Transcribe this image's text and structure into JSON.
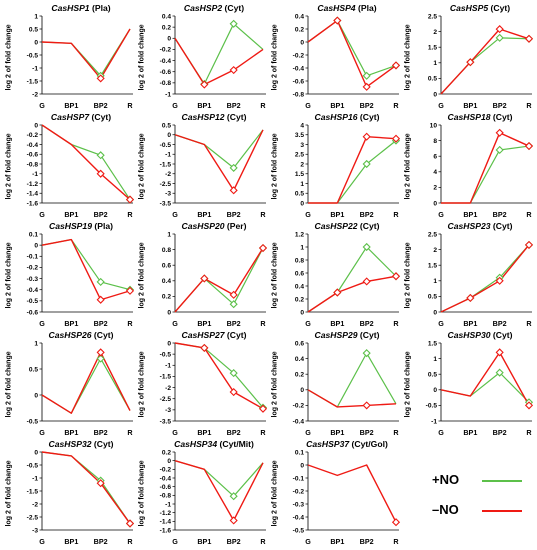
{
  "colors": {
    "no_plus": "#5cc04a",
    "no_minus": "#ef1a14",
    "axis": "#000000"
  },
  "legend": {
    "plus_label": "+NO",
    "minus_label": "–NO"
  },
  "ylabel_text": "log 2 of fold change",
  "categories": [
    "G",
    "BP1",
    "BP2",
    "R"
  ],
  "chart_data": [
    {
      "type": "line",
      "title_gene": "CasHSP1",
      "title_loc": "(Pla)",
      "ylabel": "log 2 of fold change",
      "categories": [
        "G",
        "BP1",
        "BP2",
        "R"
      ],
      "ylim": [
        -2,
        1
      ],
      "yticks": [
        -2,
        -1.5,
        -1,
        -0.5,
        0,
        0.5,
        1
      ],
      "markers": [
        2
      ],
      "series": [
        {
          "name": "+NO",
          "values": [
            0,
            -0.05,
            -1.3,
            0.5
          ]
        },
        {
          "name": "–NO",
          "values": [
            0,
            -0.05,
            -1.4,
            0.5
          ]
        }
      ]
    },
    {
      "type": "line",
      "title_gene": "CasHSP2",
      "title_loc": "(Cyt)",
      "ylabel": "log 2 of fold change",
      "categories": [
        "G",
        "BP1",
        "BP2",
        "R"
      ],
      "ylim": [
        -1,
        0.4
      ],
      "yticks": [
        -1,
        -0.8,
        -0.6,
        -0.4,
        -0.2,
        0,
        0.2,
        0.4
      ],
      "markers": [
        1,
        2
      ],
      "series": [
        {
          "name": "+NO",
          "values": [
            0,
            -0.82,
            0.26,
            -0.2
          ]
        },
        {
          "name": "–NO",
          "values": [
            0,
            -0.83,
            -0.57,
            -0.2
          ]
        }
      ]
    },
    {
      "type": "line",
      "title_gene": "CasHSP4",
      "title_loc": "(Pla)",
      "ylabel": "log 2 of fold change",
      "categories": [
        "G",
        "BP1",
        "BP2",
        "R"
      ],
      "ylim": [
        -0.8,
        0.4
      ],
      "yticks": [
        -0.8,
        -0.6,
        -0.4,
        -0.2,
        0,
        0.2,
        0.4
      ],
      "markers": [
        1,
        2,
        3
      ],
      "series": [
        {
          "name": "+NO",
          "values": [
            0,
            0.33,
            -0.52,
            -0.36
          ]
        },
        {
          "name": "–NO",
          "values": [
            0,
            0.33,
            -0.69,
            -0.36
          ]
        }
      ]
    },
    {
      "type": "line",
      "title_gene": "CasHSP5",
      "title_loc": "(Cyt)",
      "ylabel": "log 2 of fold change",
      "categories": [
        "G",
        "BP1",
        "BP2",
        "R"
      ],
      "ylim": [
        0,
        2.5
      ],
      "yticks": [
        0,
        0.5,
        1,
        1.5,
        2,
        2.5
      ],
      "markers": [
        1,
        2,
        3
      ],
      "series": [
        {
          "name": "+NO",
          "values": [
            0,
            1.02,
            1.8,
            1.77
          ]
        },
        {
          "name": "–NO",
          "values": [
            0,
            1.02,
            2.08,
            1.77
          ]
        }
      ]
    },
    {
      "type": "line",
      "title_gene": "CasHSP7",
      "title_loc": "(Cyt)",
      "ylabel": "log 2 of fold change",
      "categories": [
        "G",
        "BP1",
        "BP2",
        "R"
      ],
      "ylim": [
        -1.6,
        0
      ],
      "yticks": [
        -1.6,
        -1.4,
        -1.2,
        -1,
        -0.8,
        -0.6,
        -0.4,
        -0.2,
        0
      ],
      "markers": [
        2,
        3
      ],
      "series": [
        {
          "name": "+NO",
          "values": [
            0,
            -0.4,
            -0.62,
            -1.53
          ]
        },
        {
          "name": "–NO",
          "values": [
            0,
            -0.4,
            -1.0,
            -1.53
          ]
        }
      ]
    },
    {
      "type": "line",
      "title_gene": "CasHSP12",
      "title_loc": "(Cyt)",
      "ylabel": "log 2 of fold change",
      "categories": [
        "G",
        "BP1",
        "BP2",
        "R"
      ],
      "ylim": [
        -3.5,
        0.5
      ],
      "yticks": [
        -3.5,
        -3,
        -2.5,
        -2,
        -1.5,
        -1,
        -0.5,
        0,
        0.5
      ],
      "markers": [
        2
      ],
      "series": [
        {
          "name": "+NO",
          "values": [
            0,
            -0.5,
            -1.7,
            0.25
          ]
        },
        {
          "name": "–NO",
          "values": [
            0,
            -0.5,
            -2.85,
            0.25
          ]
        }
      ]
    },
    {
      "type": "line",
      "title_gene": "CasHSP16",
      "title_loc": "(Cyt)",
      "ylabel": "log 2 of fold change",
      "categories": [
        "G",
        "BP1",
        "BP2",
        "R"
      ],
      "ylim": [
        0,
        4
      ],
      "yticks": [
        0,
        0.5,
        1,
        1.5,
        2,
        2.5,
        3,
        3.5,
        4
      ],
      "markers": [
        2,
        3
      ],
      "series": [
        {
          "name": "+NO",
          "values": [
            0,
            0,
            2.0,
            3.2
          ]
        },
        {
          "name": "–NO",
          "values": [
            0,
            0,
            3.4,
            3.3
          ]
        }
      ]
    },
    {
      "type": "line",
      "title_gene": "CasHSP18",
      "title_loc": "(Cyt)",
      "ylabel": "log 2 of fold change",
      "categories": [
        "G",
        "BP1",
        "BP2",
        "R"
      ],
      "ylim": [
        0,
        10
      ],
      "yticks": [
        0,
        2,
        4,
        6,
        8,
        10
      ],
      "markers": [
        2,
        3
      ],
      "series": [
        {
          "name": "+NO",
          "values": [
            0,
            0,
            6.8,
            7.3
          ]
        },
        {
          "name": "–NO",
          "values": [
            0,
            0,
            9.0,
            7.3
          ]
        }
      ]
    },
    {
      "type": "line",
      "title_gene": "CasHSP19",
      "title_loc": "(Pla)",
      "ylabel": "log 2 of fold change",
      "categories": [
        "G",
        "BP1",
        "BP2",
        "R"
      ],
      "ylim": [
        -0.6,
        0.1
      ],
      "yticks": [
        -0.6,
        -0.5,
        -0.4,
        -0.3,
        -0.2,
        -0.1,
        0,
        0.1
      ],
      "markers": [
        2,
        3
      ],
      "series": [
        {
          "name": "+NO",
          "values": [
            0,
            0.05,
            -0.33,
            -0.4
          ]
        },
        {
          "name": "–NO",
          "values": [
            0,
            0.05,
            -0.49,
            -0.41
          ]
        }
      ]
    },
    {
      "type": "line",
      "title_gene": "CasHSP20",
      "title_loc": "(Per)",
      "ylabel": "log 2 of fold change",
      "categories": [
        "G",
        "BP1",
        "BP2",
        "R"
      ],
      "ylim": [
        0,
        1
      ],
      "yticks": [
        0,
        0.2,
        0.4,
        0.6,
        0.8,
        1
      ],
      "markers": [
        1,
        2,
        3
      ],
      "series": [
        {
          "name": "+NO",
          "values": [
            0,
            0.43,
            0.1,
            0.82
          ]
        },
        {
          "name": "–NO",
          "values": [
            0,
            0.43,
            0.22,
            0.82
          ]
        }
      ]
    },
    {
      "type": "line",
      "title_gene": "CasHSP22",
      "title_loc": "(Cyt)",
      "ylabel": "log 2 of fold change",
      "categories": [
        "G",
        "BP1",
        "BP2",
        "R"
      ],
      "ylim": [
        0,
        1.2
      ],
      "yticks": [
        0,
        0.2,
        0.4,
        0.6,
        0.8,
        1,
        1.2
      ],
      "markers": [
        1,
        2,
        3
      ],
      "series": [
        {
          "name": "+NO",
          "values": [
            0,
            0.3,
            1.0,
            0.55
          ]
        },
        {
          "name": "–NO",
          "values": [
            0,
            0.3,
            0.47,
            0.55
          ]
        }
      ]
    },
    {
      "type": "line",
      "title_gene": "CasHSP23",
      "title_loc": "(Cyt)",
      "ylabel": "log 2 of fold change",
      "categories": [
        "G",
        "BP1",
        "BP2",
        "R"
      ],
      "ylim": [
        0,
        2.5
      ],
      "yticks": [
        0,
        0.5,
        1,
        1.5,
        2,
        2.5
      ],
      "markers": [
        1,
        2,
        3
      ],
      "series": [
        {
          "name": "+NO",
          "values": [
            0,
            0.45,
            1.1,
            2.15
          ]
        },
        {
          "name": "–NO",
          "values": [
            0,
            0.45,
            1.0,
            2.15
          ]
        }
      ]
    },
    {
      "type": "line",
      "title_gene": "CasHSP26",
      "title_loc": "(Cyt)",
      "ylabel": "log 2 of fold change",
      "categories": [
        "G",
        "BP1",
        "BP2",
        "R"
      ],
      "ylim": [
        -0.5,
        1
      ],
      "yticks": [
        -0.5,
        0,
        0.5,
        1
      ],
      "markers": [
        2
      ],
      "series": [
        {
          "name": "+NO",
          "values": [
            0,
            -0.35,
            0.7,
            -0.3
          ]
        },
        {
          "name": "–NO",
          "values": [
            0,
            -0.35,
            0.82,
            -0.3
          ]
        }
      ]
    },
    {
      "type": "line",
      "title_gene": "CasHSP27",
      "title_loc": "(Cyt)",
      "ylabel": "log 2 of fold change",
      "categories": [
        "G",
        "BP1",
        "BP2",
        "R"
      ],
      "ylim": [
        -3.5,
        0
      ],
      "yticks": [
        -3.5,
        -3,
        -2.5,
        -2,
        -1.5,
        -1,
        -0.5,
        0
      ],
      "markers": [
        1,
        2,
        3
      ],
      "series": [
        {
          "name": "+NO",
          "values": [
            0,
            -0.22,
            -1.35,
            -2.9
          ]
        },
        {
          "name": "–NO",
          "values": [
            0,
            -0.22,
            -2.2,
            -2.95
          ]
        }
      ]
    },
    {
      "type": "line",
      "title_gene": "CasHSP29",
      "title_loc": "(Cyt)",
      "ylabel": "log 2 of fold change",
      "categories": [
        "G",
        "BP1",
        "BP2",
        "R"
      ],
      "ylim": [
        -0.4,
        0.6
      ],
      "yticks": [
        -0.4,
        -0.2,
        0,
        0.2,
        0.4,
        0.6
      ],
      "markers": [
        2
      ],
      "series": [
        {
          "name": "+NO",
          "values": [
            0,
            -0.22,
            0.47,
            -0.18
          ]
        },
        {
          "name": "–NO",
          "values": [
            0,
            -0.22,
            -0.2,
            -0.18
          ]
        }
      ]
    },
    {
      "type": "line",
      "title_gene": "CasHSP30",
      "title_loc": "(Cyt)",
      "ylabel": "log 2 of fold change",
      "categories": [
        "G",
        "BP1",
        "BP2",
        "R"
      ],
      "ylim": [
        -1,
        1.5
      ],
      "yticks": [
        -1,
        -0.5,
        0,
        0.5,
        1,
        1.5
      ],
      "markers": [
        2,
        3
      ],
      "series": [
        {
          "name": "+NO",
          "values": [
            0,
            -0.2,
            0.55,
            -0.4
          ]
        },
        {
          "name": "–NO",
          "values": [
            0,
            -0.2,
            1.2,
            -0.5
          ]
        }
      ]
    },
    {
      "type": "line",
      "title_gene": "CasHSP32",
      "title_loc": "(Cyt)",
      "ylabel": "log 2 of fold change",
      "categories": [
        "G",
        "BP1",
        "BP2",
        "R"
      ],
      "ylim": [
        -3,
        0
      ],
      "yticks": [
        -3,
        -2.5,
        -2,
        -1.5,
        -1,
        -0.5,
        0
      ],
      "markers": [
        2,
        3
      ],
      "series": [
        {
          "name": "+NO",
          "values": [
            0,
            -0.15,
            -1.1,
            -2.75
          ]
        },
        {
          "name": "–NO",
          "values": [
            0,
            -0.15,
            -1.2,
            -2.75
          ]
        }
      ]
    },
    {
      "type": "line",
      "title_gene": "CasHSP34",
      "title_loc": "(Cyt/Mit)",
      "ylabel": "log 2 of fold change",
      "categories": [
        "G",
        "BP1",
        "BP2",
        "R"
      ],
      "ylim": [
        -1.6,
        0.2
      ],
      "yticks": [
        -1.6,
        -1.4,
        -1.2,
        -1,
        -0.8,
        -0.6,
        -0.4,
        -0.2,
        0,
        0.2
      ],
      "markers": [
        2
      ],
      "series": [
        {
          "name": "+NO",
          "values": [
            0,
            -0.2,
            -0.82,
            -0.05
          ]
        },
        {
          "name": "–NO",
          "values": [
            0,
            -0.2,
            -1.38,
            -0.05
          ]
        }
      ]
    },
    {
      "type": "line",
      "title_gene": "CasHSP37",
      "title_loc": "(Cyt/Gol)",
      "ylabel": "log 2 of fold change",
      "categories": [
        "G",
        "BP1",
        "BP2",
        "R"
      ],
      "ylim": [
        -0.5,
        0.1
      ],
      "yticks": [
        -0.5,
        -0.4,
        -0.3,
        -0.2,
        -0.1,
        0,
        0.1
      ],
      "markers": [
        3
      ],
      "series": [
        {
          "name": "–NO",
          "values": [
            0,
            -0.08,
            0,
            -0.44
          ]
        }
      ]
    }
  ]
}
